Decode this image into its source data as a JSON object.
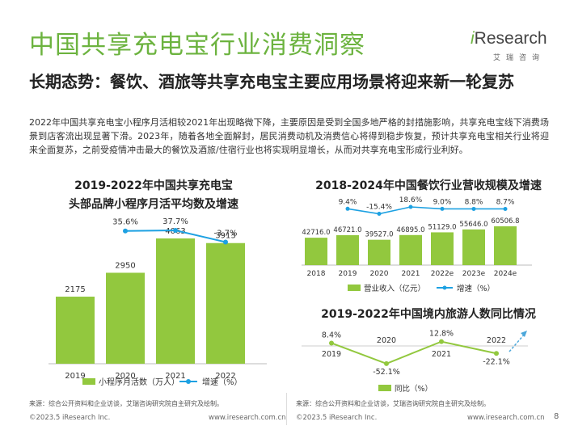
{
  "page": {
    "title": "中国共享充电宝行业消费洞察",
    "subtitle": "长期态势：餐饮、酒旅等共享充电宝主要应用场景将迎来新一轮复苏",
    "paragraph": "2022年中国共享充电宝小程序月活相较2021年出现略微下降，主要原因是受到全国多地严格的封措施影响，共享充电宝线下消费场景到店客流出现显著下滑。2023年，随着各地全面解封，居民消费动机及消费信心将得到稳步恢复，预计共享充电宝相关行业将迎来全面复苏，之前受疫情冲击最大的餐饮及酒旅/住宿行业也将实现明显增长，从而对共享充电宝形成行业利好。",
    "page_number": "8"
  },
  "logo": {
    "brand_i": "i",
    "brand_rest": "Research",
    "sub": "艾瑞咨询"
  },
  "footer": {
    "source_left": "来源：综合公开资料和企业访谈，艾瑞咨询研究院自主研究及绘制。",
    "source_right": "来源：综合公开资料和企业访谈，艾瑞咨询研究院自主研究及绘制。",
    "copyright_left": "©2023.5 iResearch Inc.",
    "url_left": "www.iresearch.com.cn",
    "copyright_right": "©2023.5 iResearch Inc.",
    "url_right": "www.iresearch.com.cn"
  },
  "colors": {
    "green": "#92C83E",
    "blue": "#1DA1E2",
    "title_green": "#6CB33F"
  },
  "chart_data": [
    {
      "type": "bar",
      "title_line1": "2019-2022年中国共享充电宝",
      "title_line2": "头部品牌小程序月活平均数及增速",
      "categories": [
        "2019",
        "2020",
        "2021",
        "2022"
      ],
      "series": [
        {
          "name": "小程序月活数（万人）",
          "type": "bar",
          "values": [
            2175,
            2950,
            4063,
            3913
          ],
          "labels": [
            "2175",
            "2950",
            "4063",
            "3913"
          ]
        },
        {
          "name": "增速（%）",
          "type": "line",
          "values": [
            null,
            35.6,
            37.7,
            -3.7
          ],
          "labels": [
            "",
            "35.6%",
            "37.7%",
            "-3.7%"
          ]
        }
      ],
      "legend": "bottom"
    },
    {
      "type": "bar",
      "title": "2018-2024年中国餐饮行业营收规模及增速",
      "categories": [
        "2018",
        "2019",
        "2020",
        "2021",
        "2022e",
        "2023e",
        "2024e"
      ],
      "series": [
        {
          "name": "营业收入（亿元）",
          "type": "bar",
          "values": [
            42716.0,
            46721.0,
            39527.0,
            46895.0,
            51129.0,
            55646.0,
            60506.8
          ],
          "labels": [
            "42716.0",
            "46721.0",
            "39527.0",
            "46895.0",
            "51129.0",
            "55646.0",
            "60506.8"
          ]
        },
        {
          "name": "增速（%）",
          "type": "line",
          "values": [
            null,
            9.4,
            -15.4,
            18.6,
            9.0,
            8.8,
            8.7
          ],
          "labels": [
            "",
            "9.4%",
            "-15.4%",
            "18.6%",
            "9.0%",
            "8.8%",
            "8.7%"
          ]
        }
      ],
      "legend": "bottom"
    },
    {
      "type": "line",
      "title": "2019-2022年中国境内旅游人数同比情况",
      "categories": [
        "2019",
        "2020",
        "2021",
        "2022"
      ],
      "series": [
        {
          "name": "同比（%）",
          "values": [
            8.4,
            -52.1,
            12.8,
            -22.1
          ],
          "labels": [
            "8.4%",
            "-52.1%",
            "12.8%",
            "-22.1%"
          ]
        }
      ],
      "legend": "bottom"
    }
  ]
}
